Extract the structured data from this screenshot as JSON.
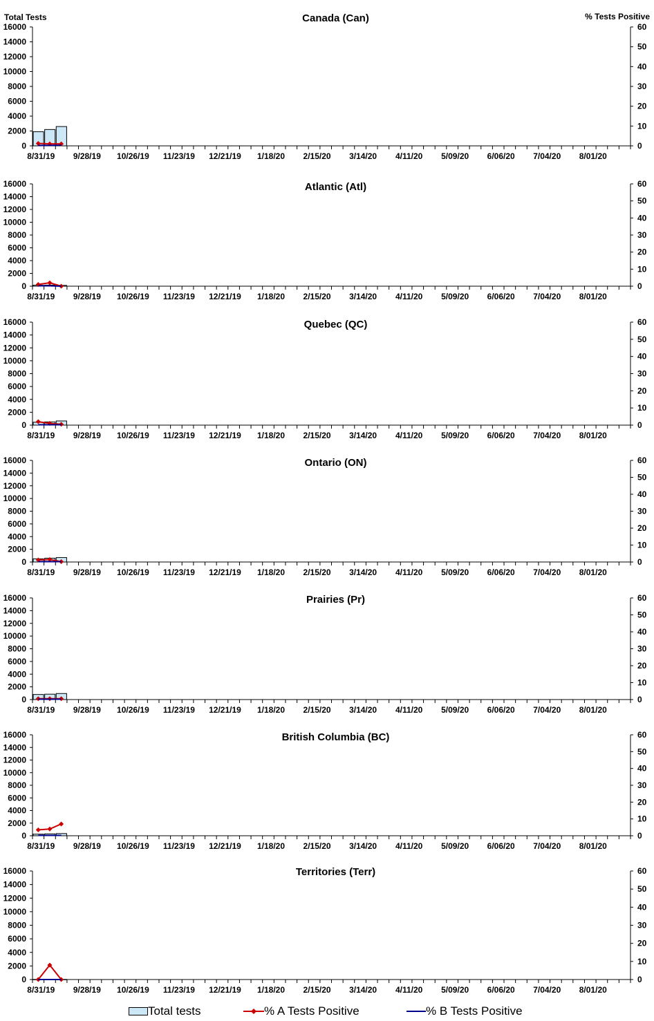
{
  "axis_titles": {
    "left": "Total Tests",
    "right": "% Tests Positive"
  },
  "legend": {
    "total": "Total tests",
    "a": "% A Tests Positive",
    "b": "% B Tests Positive"
  },
  "colors": {
    "bar_fill": "#cce8f6",
    "bar_stroke": "#000000",
    "series_a": "#cc0000",
    "series_b": "#00008b"
  },
  "chart_data": [
    {
      "type": "bar",
      "title": "Canada (Can)",
      "x_tick_labels": [
        "8/31/19",
        "9/28/19",
        "10/26/19",
        "11/23/19",
        "12/21/19",
        "1/18/20",
        "2/15/20",
        "3/14/20",
        "4/11/20",
        "5/09/20",
        "6/06/20",
        "7/04/20",
        "8/01/20"
      ],
      "ylim": [
        0,
        16000
      ],
      "y_ticks": [
        0,
        2000,
        4000,
        6000,
        8000,
        10000,
        12000,
        14000,
        16000
      ],
      "y2lim": [
        0,
        60
      ],
      "y2_ticks": [
        0,
        10,
        20,
        30,
        40,
        50,
        60
      ],
      "series": [
        {
          "name": "Total tests",
          "type": "bar",
          "axis": "left",
          "values": [
            1900,
            2200,
            2600
          ]
        },
        {
          "name": "% A Tests Positive",
          "type": "line",
          "axis": "right",
          "values": [
            1.2,
            1.0,
            1.0
          ]
        },
        {
          "name": "% B Tests Positive",
          "type": "line",
          "axis": "right",
          "values": [
            0.2,
            0.2,
            0.3
          ]
        }
      ]
    },
    {
      "type": "bar",
      "title": "Atlantic (Atl)",
      "x_tick_labels": [
        "8/31/19",
        "9/28/19",
        "10/26/19",
        "11/23/19",
        "12/21/19",
        "1/18/20",
        "2/15/20",
        "3/14/20",
        "4/11/20",
        "5/09/20",
        "6/06/20",
        "7/04/20",
        "8/01/20"
      ],
      "ylim": [
        0,
        16000
      ],
      "y_ticks": [
        0,
        2000,
        4000,
        6000,
        8000,
        10000,
        12000,
        14000,
        16000
      ],
      "y2lim": [
        0,
        60
      ],
      "y2_ticks": [
        0,
        10,
        20,
        30,
        40,
        50,
        60
      ],
      "series": [
        {
          "name": "Total tests",
          "type": "bar",
          "axis": "left",
          "values": [
            150,
            170,
            120
          ]
        },
        {
          "name": "% A Tests Positive",
          "type": "line",
          "axis": "right",
          "values": [
            1.0,
            2.0,
            0.0
          ]
        },
        {
          "name": "% B Tests Positive",
          "type": "line",
          "axis": "right",
          "values": [
            0.2,
            0.2,
            0.0
          ]
        }
      ]
    },
    {
      "type": "bar",
      "title": "Quebec (QC)",
      "x_tick_labels": [
        "8/31/19",
        "9/28/19",
        "10/26/19",
        "11/23/19",
        "12/21/19",
        "1/18/20",
        "2/15/20",
        "3/14/20",
        "4/11/20",
        "5/09/20",
        "6/06/20",
        "7/04/20",
        "8/01/20"
      ],
      "ylim": [
        0,
        16000
      ],
      "y_ticks": [
        0,
        2000,
        4000,
        6000,
        8000,
        10000,
        12000,
        14000,
        16000
      ],
      "y2lim": [
        0,
        60
      ],
      "y2_ticks": [
        0,
        10,
        20,
        30,
        40,
        50,
        60
      ],
      "series": [
        {
          "name": "Total tests",
          "type": "bar",
          "axis": "left",
          "values": [
            450,
            500,
            650
          ]
        },
        {
          "name": "% A Tests Positive",
          "type": "line",
          "axis": "right",
          "values": [
            2.0,
            1.0,
            0.5
          ]
        },
        {
          "name": "% B Tests Positive",
          "type": "line",
          "axis": "right",
          "values": [
            0.2,
            0.2,
            0.2
          ]
        }
      ]
    },
    {
      "type": "bar",
      "title": "Ontario (ON)",
      "x_tick_labels": [
        "8/31/19",
        "9/28/19",
        "10/26/19",
        "11/23/19",
        "12/21/19",
        "1/18/20",
        "2/15/20",
        "3/14/20",
        "4/11/20",
        "5/09/20",
        "6/06/20",
        "7/04/20",
        "8/01/20"
      ],
      "ylim": [
        0,
        16000
      ],
      "y_ticks": [
        0,
        2000,
        4000,
        6000,
        8000,
        10000,
        12000,
        14000,
        16000
      ],
      "y2lim": [
        0,
        60
      ],
      "y2_ticks": [
        0,
        10,
        20,
        30,
        40,
        50,
        60
      ],
      "series": [
        {
          "name": "Total tests",
          "type": "bar",
          "axis": "left",
          "values": [
            500,
            600,
            700
          ]
        },
        {
          "name": "% A Tests Positive",
          "type": "line",
          "axis": "right",
          "values": [
            1.2,
            1.5,
            0.2
          ]
        },
        {
          "name": "% B Tests Positive",
          "type": "line",
          "axis": "right",
          "values": [
            0.2,
            0.2,
            0.2
          ]
        }
      ]
    },
    {
      "type": "bar",
      "title": "Prairies (Pr)",
      "x_tick_labels": [
        "8/31/19",
        "9/28/19",
        "10/26/19",
        "11/23/19",
        "12/21/19",
        "1/18/20",
        "2/15/20",
        "3/14/20",
        "4/11/20",
        "5/09/20",
        "6/06/20",
        "7/04/20",
        "8/01/20"
      ],
      "ylim": [
        0,
        16000
      ],
      "y_ticks": [
        0,
        2000,
        4000,
        6000,
        8000,
        10000,
        12000,
        14000,
        16000
      ],
      "y2lim": [
        0,
        60
      ],
      "y2_ticks": [
        0,
        10,
        20,
        30,
        40,
        50,
        60
      ],
      "series": [
        {
          "name": "Total tests",
          "type": "bar",
          "axis": "left",
          "values": [
            800,
            850,
            950
          ]
        },
        {
          "name": "% A Tests Positive",
          "type": "line",
          "axis": "right",
          "values": [
            0.5,
            0.5,
            0.5
          ]
        },
        {
          "name": "% B Tests Positive",
          "type": "line",
          "axis": "right",
          "values": [
            0.2,
            0.2,
            0.2
          ]
        }
      ]
    },
    {
      "type": "bar",
      "title": "British Columbia (BC)",
      "x_tick_labels": [
        "8/31/19",
        "9/28/19",
        "10/26/19",
        "11/23/19",
        "12/21/19",
        "1/18/20",
        "2/15/20",
        "3/14/20",
        "4/11/20",
        "5/09/20",
        "6/06/20",
        "7/04/20",
        "8/01/20"
      ],
      "ylim": [
        0,
        16000
      ],
      "y_ticks": [
        0,
        2000,
        4000,
        6000,
        8000,
        10000,
        12000,
        14000,
        16000
      ],
      "y2lim": [
        0,
        60
      ],
      "y2_ticks": [
        0,
        10,
        20,
        30,
        40,
        50,
        60
      ],
      "series": [
        {
          "name": "Total tests",
          "type": "bar",
          "axis": "left",
          "values": [
            250,
            300,
            350
          ]
        },
        {
          "name": "% A Tests Positive",
          "type": "line",
          "axis": "right",
          "values": [
            3.5,
            4.0,
            7.0
          ]
        },
        {
          "name": "% B Tests Positive",
          "type": "line",
          "axis": "right",
          "values": [
            0.2,
            0.2,
            0.2
          ]
        }
      ]
    },
    {
      "type": "bar",
      "title": "Territories (Terr)",
      "x_tick_labels": [
        "8/31/19",
        "9/28/19",
        "10/26/19",
        "11/23/19",
        "12/21/19",
        "1/18/20",
        "2/15/20",
        "3/14/20",
        "4/11/20",
        "5/09/20",
        "6/06/20",
        "7/04/20",
        "8/01/20"
      ],
      "ylim": [
        0,
        16000
      ],
      "y_ticks": [
        0,
        2000,
        4000,
        6000,
        8000,
        10000,
        12000,
        14000,
        16000
      ],
      "y2lim": [
        0,
        60
      ],
      "y2_ticks": [
        0,
        10,
        20,
        30,
        40,
        50,
        60
      ],
      "series": [
        {
          "name": "Total tests",
          "type": "bar",
          "axis": "left",
          "values": [
            20,
            25,
            20
          ]
        },
        {
          "name": "% A Tests Positive",
          "type": "line",
          "axis": "right",
          "values": [
            0.0,
            8.0,
            0.0
          ]
        },
        {
          "name": "% B Tests Positive",
          "type": "line",
          "axis": "right",
          "values": [
            0.0,
            0.0,
            0.0
          ]
        }
      ]
    }
  ]
}
